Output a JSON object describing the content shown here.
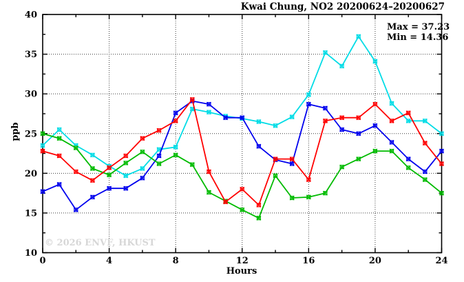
{
  "title": "Kwai Chung, NO2 20200624–20200627",
  "annotation": {
    "max_label": "Max = 37.23",
    "min_label": "Min = 14.36"
  },
  "watermark": "© 2026 ENVF, HKUST",
  "colors": {
    "series_red": "#ff0000",
    "series_green": "#00bb00",
    "series_blue": "#0000ee",
    "series_cyan": "#00dce6",
    "grid": "#3a3a3a",
    "watermark": "#d7d7d7"
  },
  "chart_data": {
    "type": "line",
    "title": "Kwai Chung, NO2 20200624–20200627",
    "xlabel": "Hours",
    "ylabel": "ppb",
    "xlim": [
      0,
      24
    ],
    "ylim": [
      10,
      40
    ],
    "x_major_ticks": [
      0,
      4,
      8,
      12,
      16,
      20,
      24
    ],
    "x_minor_ticks": [
      2,
      6,
      10,
      14,
      18,
      22
    ],
    "y_major_ticks": [
      10,
      15,
      20,
      25,
      30,
      35,
      40
    ],
    "y_minor_ticks": [
      12.5,
      17.5,
      22.5,
      27.5,
      32.5,
      37.5
    ],
    "grid": "dotted-at-major-ticks",
    "legend": "none",
    "marker": "boxed-x",
    "x": [
      0,
      1,
      2,
      3,
      4,
      5,
      6,
      7,
      8,
      9,
      10,
      11,
      12,
      13,
      14,
      15,
      16,
      17,
      18,
      19,
      20,
      21,
      22,
      23,
      24
    ],
    "series": [
      {
        "name": "red",
        "color": "#ff0000",
        "values": [
          22.8,
          22.2,
          20.2,
          19.1,
          20.7,
          22.2,
          24.4,
          25.4,
          26.6,
          29.3,
          20.2,
          16.4,
          18.0,
          16.0,
          21.8,
          21.8,
          19.2,
          26.6,
          27.0,
          27.0,
          28.7,
          26.6,
          27.6,
          23.8,
          21.2
        ]
      },
      {
        "name": "green",
        "color": "#00bb00",
        "values": [
          25.0,
          24.4,
          23.2,
          20.6,
          19.8,
          21.3,
          22.7,
          21.2,
          22.3,
          21.1,
          17.6,
          16.5,
          15.4,
          14.36,
          19.7,
          16.9,
          17.0,
          17.5,
          20.8,
          21.8,
          22.8,
          22.8,
          20.7,
          19.2,
          17.5
        ]
      },
      {
        "name": "blue",
        "color": "#0000ee",
        "values": [
          17.7,
          18.6,
          15.4,
          17.0,
          18.1,
          18.1,
          19.4,
          22.2,
          27.6,
          29.1,
          28.7,
          27.0,
          27.0,
          23.4,
          21.7,
          21.2,
          28.7,
          28.2,
          25.5,
          25.0,
          26.0,
          23.9,
          21.8,
          20.2,
          22.8
        ]
      },
      {
        "name": "cyan",
        "color": "#00dce6",
        "values": [
          23.5,
          25.5,
          23.5,
          22.3,
          20.9,
          19.7,
          20.6,
          23.0,
          23.3,
          28.1,
          27.7,
          27.2,
          26.9,
          26.5,
          26.0,
          27.1,
          29.9,
          35.2,
          33.5,
          37.23,
          34.1,
          28.8,
          26.6,
          26.6,
          25.0
        ]
      }
    ],
    "stats": {
      "max": 37.23,
      "min": 14.36
    }
  }
}
